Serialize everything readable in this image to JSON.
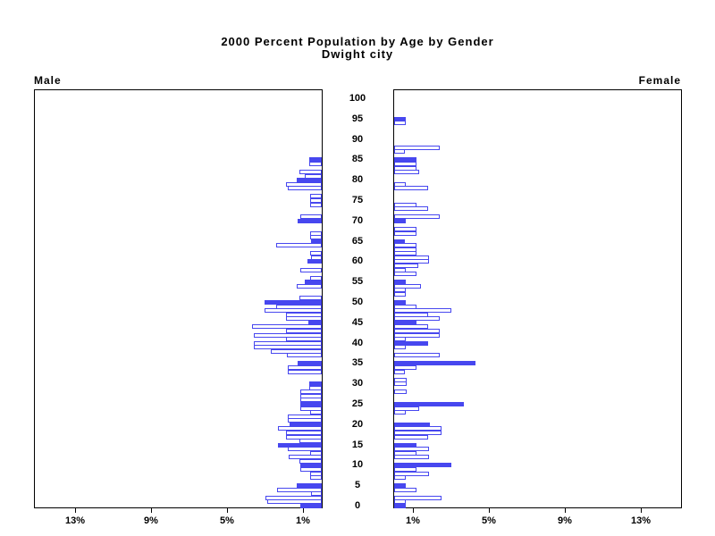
{
  "title": {
    "line1": "2000 Percent Population by Age by Gender",
    "line2": "Dwight city"
  },
  "side_labels": {
    "left": "Male",
    "right": "Female"
  },
  "age_axis": {
    "labels": [
      "0",
      "5",
      "10",
      "15",
      "20",
      "25",
      "30",
      "35",
      "40",
      "45",
      "50",
      "55",
      "60",
      "65",
      "70",
      "75",
      "80",
      "85",
      "90",
      "95",
      "100"
    ]
  },
  "axis": {
    "male_tick_labels": [
      "13%",
      "9%",
      "5%",
      "1%"
    ],
    "male_tick_values": [
      13,
      9,
      5,
      1
    ],
    "female_tick_labels": [
      "1%",
      "5%",
      "9%",
      "13%"
    ],
    "female_tick_values": [
      1,
      5,
      9,
      13
    ]
  },
  "colors": {
    "bar_blue": "#4747ef",
    "frame": "#000000",
    "background": "#ffffff",
    "text": "#000000"
  },
  "chart_data": {
    "type": "bar",
    "subtype": "population-pyramid",
    "title": "2000 Percent Population by Age by Gender",
    "subtitle": "Dwight city",
    "orientation": "horizontal-mirrored",
    "age_min": 0,
    "age_max": 100,
    "age_label_step": 5,
    "unit": "percent",
    "x_ticks_percent": [
      1,
      5,
      9,
      13
    ],
    "xlim_percent": [
      0,
      15.2
    ],
    "grid": false,
    "legend": false,
    "series": [
      {
        "name": "Male",
        "side": "left",
        "values_by_age": [
          1.15,
          2.9,
          2.95,
          0.55,
          2.35,
          1.3,
          0,
          0.6,
          0.6,
          1.15,
          1.15,
          1.2,
          1.75,
          0.6,
          1.8,
          2.3,
          1.2,
          1.9,
          1.9,
          2.3,
          1.7,
          1.8,
          1.8,
          0.6,
          1.15,
          1.15,
          1.15,
          1.15,
          1.15,
          0.65,
          0.65,
          0,
          0,
          1.8,
          1.8,
          1.25,
          0,
          1.85,
          2.7,
          3.6,
          3.6,
          1.9,
          3.6,
          1.9,
          3.7,
          0.7,
          1.9,
          1.9,
          3.0,
          2.4,
          3.0,
          1.2,
          0,
          0,
          1.3,
          0.9,
          0.6,
          0,
          1.15,
          0,
          0.75,
          0.55,
          0.6,
          0,
          2.4,
          0.55,
          0.6,
          0.6,
          0,
          0,
          1.25,
          1.15,
          0,
          0,
          0.6,
          0.6,
          0.6,
          0,
          1.8,
          1.9,
          1.3,
          0.9,
          1.2,
          0,
          0.65,
          0.65,
          0,
          0,
          0,
          0,
          0,
          0,
          0,
          0,
          0,
          0,
          0,
          0,
          0,
          0,
          0
        ],
        "filled_ages": [
          0,
          5,
          10,
          15,
          20,
          25,
          30,
          35,
          45,
          50,
          55,
          60,
          65,
          70,
          80,
          85
        ]
      },
      {
        "name": "Female",
        "side": "right",
        "values_by_age": [
          0.6,
          0.6,
          2.5,
          0,
          1.2,
          0.6,
          0,
          0.6,
          1.85,
          1.2,
          3.0,
          0,
          1.85,
          1.2,
          1.85,
          1.2,
          0,
          1.8,
          2.5,
          2.5,
          1.9,
          0,
          0,
          0.6,
          1.3,
          3.7,
          0,
          0,
          0.65,
          0,
          0.65,
          0.65,
          0,
          0.55,
          1.2,
          4.3,
          0,
          2.4,
          0,
          0.6,
          1.8,
          0.6,
          2.4,
          2.4,
          1.8,
          1.2,
          2.4,
          1.8,
          3.0,
          1.2,
          0.6,
          0,
          0.6,
          0.6,
          1.4,
          0.6,
          0,
          1.2,
          0.6,
          1.25,
          1.85,
          1.85,
          1.2,
          1.2,
          1.2,
          0.55,
          0,
          1.2,
          1.2,
          0,
          0.6,
          2.4,
          0,
          1.8,
          1.2,
          0,
          0,
          0,
          1.8,
          0.6,
          0,
          0,
          1.3,
          1.2,
          1.2,
          1.2,
          0,
          0.55,
          2.4,
          0,
          0,
          0,
          0,
          0,
          0.6,
          0.6,
          0,
          0,
          0,
          0,
          0
        ],
        "filled_ages": [
          0,
          5,
          10,
          15,
          20,
          25,
          35,
          40,
          45,
          50,
          55,
          65,
          70,
          85,
          95
        ]
      }
    ]
  }
}
